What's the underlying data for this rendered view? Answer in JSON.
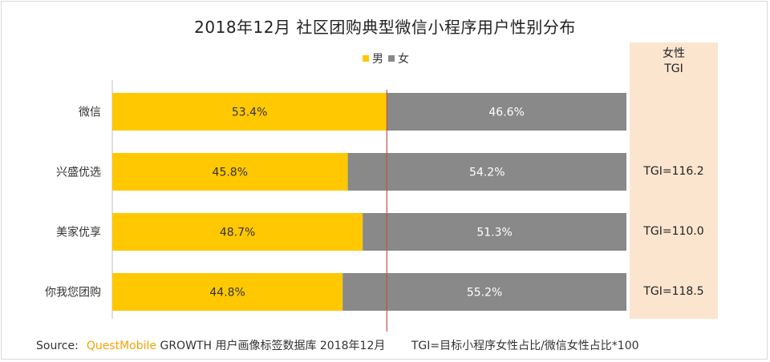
{
  "chart_data": {
    "type": "bar",
    "orientation": "horizontal",
    "stacked": true,
    "title": "2018年12月 社区团购典型微信小程序用户性别分布",
    "categories": [
      "微信",
      "兴盛优选",
      "美家优享",
      "你我您团购"
    ],
    "series": [
      {
        "name": "男",
        "values": [
          53.4,
          45.8,
          48.7,
          44.8
        ],
        "labels": [
          "53.4%",
          "45.8%",
          "48.7%",
          "44.8%"
        ],
        "color": "#ffc800"
      },
      {
        "name": "女",
        "values": [
          46.6,
          54.2,
          51.3,
          55.2
        ],
        "labels": [
          "46.6%",
          "54.2%",
          "51.3%",
          "55.2%"
        ],
        "color": "#898989"
      }
    ],
    "xlim": [
      0,
      100
    ],
    "reference_line": {
      "value": 53.4,
      "color": "#c0504d"
    },
    "legend": "top-center",
    "grid": false,
    "tgi": {
      "header": [
        "女性",
        "TGI"
      ],
      "values": [
        "",
        "TGI=116.2",
        "TGI=110.0",
        "TGI=118.5"
      ],
      "background": "#fbe5cf"
    }
  },
  "footer": {
    "source_label": "Source:",
    "brand": "QuestMobile",
    "source_text": "GROWTH 用户画像标签数据库 2018年12月",
    "note": "TGI=目标小程序女性占比/微信女性占比*100"
  }
}
